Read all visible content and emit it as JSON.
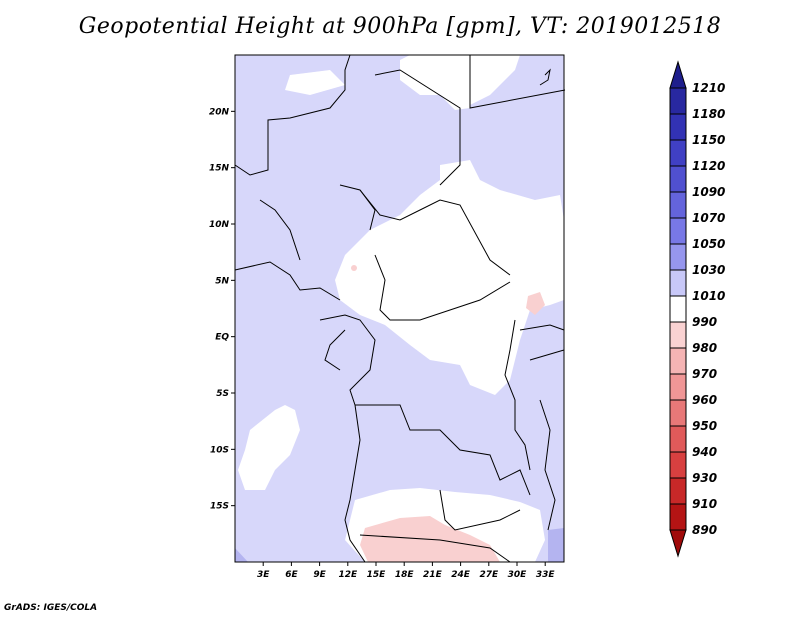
{
  "title": "Geopotential Height at 900hPa [gpm], VT: 2019012518",
  "footer": "GrADS: IGES/COLA",
  "map": {
    "lon_range": [
      0,
      35
    ],
    "lat_range": [
      -20,
      25
    ],
    "lon_ticks": [
      {
        "value": 3,
        "label": "3E"
      },
      {
        "value": 6,
        "label": "6E"
      },
      {
        "value": 9,
        "label": "9E"
      },
      {
        "value": 12,
        "label": "12E"
      },
      {
        "value": 15,
        "label": "15E"
      },
      {
        "value": 18,
        "label": "18E"
      },
      {
        "value": 21,
        "label": "21E"
      },
      {
        "value": 24,
        "label": "24E"
      },
      {
        "value": 27,
        "label": "27E"
      },
      {
        "value": 30,
        "label": "30E"
      },
      {
        "value": 33,
        "label": "33E"
      }
    ],
    "lat_ticks": [
      {
        "value": 20,
        "label": "20N"
      },
      {
        "value": 15,
        "label": "15N"
      },
      {
        "value": 10,
        "label": "10N"
      },
      {
        "value": 5,
        "label": "5N"
      },
      {
        "value": 0,
        "label": "EQ"
      },
      {
        "value": -5,
        "label": "5S"
      },
      {
        "value": -10,
        "label": "10S"
      },
      {
        "value": -15,
        "label": "15S"
      }
    ]
  },
  "colorbar": {
    "levels": [
      "1210",
      "1180",
      "1150",
      "1120",
      "1090",
      "1070",
      "1050",
      "1030",
      "1010",
      "990",
      "980",
      "970",
      "960",
      "950",
      "940",
      "930",
      "910",
      "890"
    ],
    "colors": [
      "#1e1e8c",
      "#2828a0",
      "#3232b4",
      "#4040c4",
      "#5050d0",
      "#6464dc",
      "#7878e6",
      "#9696ee",
      "#c8c8f8",
      "#ffffff",
      "#fad2d2",
      "#f5b4b4",
      "#f09696",
      "#e87878",
      "#e05a5a",
      "#d84040",
      "#c82828",
      "#b41414",
      "#a00a0a"
    ]
  },
  "colors": {
    "land_light_blue": "#d7d7fa",
    "white_region": "#ffffff",
    "pink_region": "#f9d0d0",
    "borders": "#000000"
  }
}
